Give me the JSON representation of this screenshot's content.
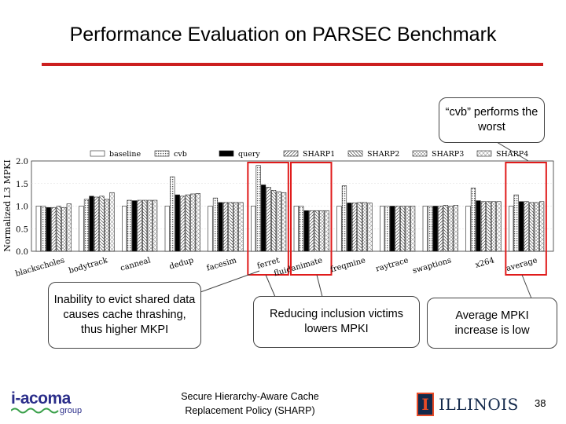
{
  "slide": {
    "title": "Performance Evaluation on PARSEC Benchmark",
    "footer_title": "Secure Hierarchy-Aware Cache Replacement Policy (SHARP)",
    "page_number": "38",
    "logo_left_text": "i-acoma",
    "logo_left_sub": "group",
    "logo_right_text": "ILLINOIS",
    "logo_right_mark": "I",
    "accent_color": "#cc1f1f"
  },
  "callouts": {
    "cvb_worst": "“cvb” performs the worst",
    "thrashing": "Inability to evict shared data causes cache thrashing, thus higher MKPI",
    "inclusion": "Reducing inclusion victims lowers MPKI",
    "average": "Average MPKI increase is low"
  },
  "chart_data": {
    "type": "bar",
    "ylabel": "Normalized L3 MPKI",
    "ylim": [
      0,
      2.0
    ],
    "yticks": [
      "0.0",
      "0.5",
      "1.0",
      "1.5",
      "2.0"
    ],
    "categories": [
      "blackscholes",
      "bodytrack",
      "canneal",
      "dedup",
      "facesim",
      "ferret",
      "fluidanimate",
      "freqmine",
      "raytrace",
      "swaptions",
      "x264",
      "average"
    ],
    "series": [
      {
        "name": "baseline",
        "pattern": "white",
        "values": [
          1.0,
          1.0,
          1.0,
          1.0,
          1.0,
          1.0,
          1.0,
          1.0,
          1.0,
          1.0,
          1.0,
          1.0
        ]
      },
      {
        "name": "cvb",
        "pattern": "dots",
        "values": [
          1.0,
          1.15,
          1.13,
          1.65,
          1.18,
          1.9,
          1.0,
          1.45,
          1.0,
          1.0,
          1.4,
          1.25
        ]
      },
      {
        "name": "query",
        "pattern": "black",
        "values": [
          0.97,
          1.22,
          1.12,
          1.25,
          1.08,
          1.47,
          0.9,
          1.07,
          1.0,
          1.0,
          1.12,
          1.1
        ]
      },
      {
        "name": "SHARP1",
        "pattern": "hatch-right",
        "values": [
          0.97,
          1.2,
          1.13,
          1.22,
          1.08,
          1.42,
          0.9,
          1.07,
          1.0,
          1.0,
          1.1,
          1.1
        ]
      },
      {
        "name": "SHARP2",
        "pattern": "hatch-left",
        "values": [
          1.0,
          1.22,
          1.13,
          1.25,
          1.08,
          1.35,
          0.9,
          1.08,
          1.0,
          1.02,
          1.1,
          1.08
        ]
      },
      {
        "name": "SHARP3",
        "pattern": "cross",
        "values": [
          0.97,
          1.15,
          1.13,
          1.27,
          1.08,
          1.32,
          0.9,
          1.08,
          1.0,
          1.0,
          1.1,
          1.08
        ]
      },
      {
        "name": "SHARP4",
        "pattern": "crosshatch",
        "values": [
          1.05,
          1.3,
          1.13,
          1.28,
          1.08,
          1.3,
          0.9,
          1.07,
          1.0,
          1.02,
          1.1,
          1.1
        ]
      }
    ],
    "highlight_groups": [
      "ferret",
      "fluidanimate",
      "average"
    ],
    "highlight_color": "#e01b1b",
    "legend_placement": "top"
  }
}
